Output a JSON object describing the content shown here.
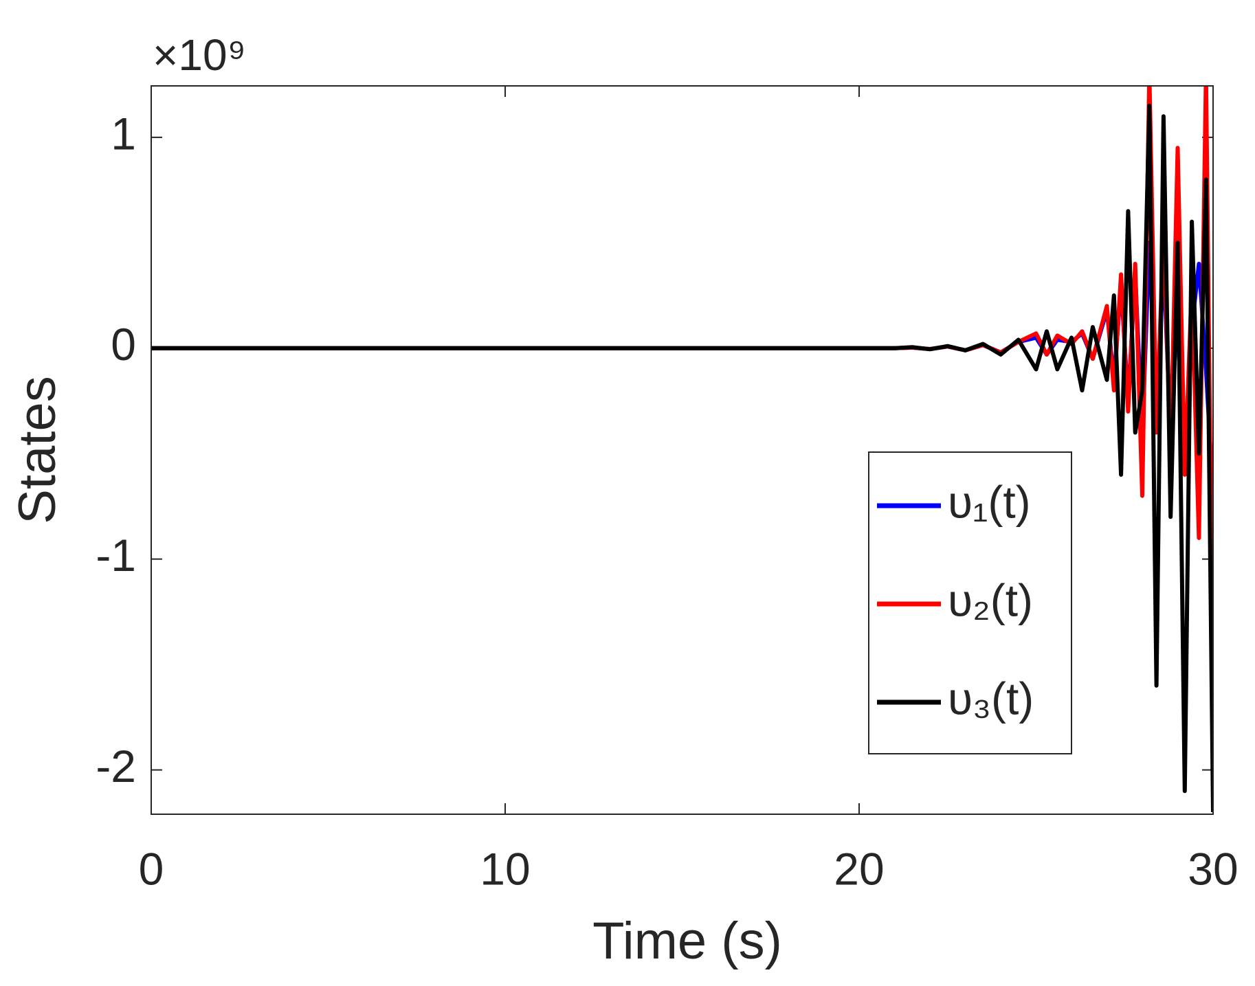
{
  "chart_data": {
    "type": "line",
    "ylabel": "States",
    "xlabel": "Time (s)",
    "y_multiplier": "×10⁹",
    "x": [
      0,
      21,
      21.5,
      22,
      22.5,
      23,
      23.5,
      24,
      24.5,
      25,
      25.3,
      25.6,
      26,
      26.3,
      26.6,
      27,
      27.2,
      27.4,
      27.6,
      27.8,
      28,
      28.2,
      28.4,
      28.6,
      28.8,
      29,
      29.2,
      29.4,
      29.6,
      29.8,
      30
    ],
    "series": [
      {
        "name": "υ₁(t)",
        "color": "#0000ff",
        "values": [
          0,
          0,
          0.003,
          -0.004,
          0.008,
          -0.01,
          0.015,
          -0.02,
          0.03,
          0.05,
          -0.03,
          0.04,
          0.03,
          0.07,
          -0.05,
          0.18,
          -0.15,
          0.3,
          -0.25,
          0.35,
          -0.4,
          0.5,
          -0.3,
          0.4,
          -0.4,
          0.2,
          -0.5,
          0.1,
          0.4,
          -0.1,
          -0.7
        ]
      },
      {
        "name": "υ₂(t)",
        "color": "#ff0000",
        "values": [
          0,
          0,
          0.003,
          -0.004,
          0.008,
          -0.01,
          0.015,
          -0.02,
          0.03,
          0.07,
          -0.03,
          0.06,
          0.02,
          0.08,
          -0.05,
          0.2,
          -0.2,
          0.35,
          -0.3,
          0.4,
          -0.7,
          1.3,
          -0.4,
          0.55,
          -0.5,
          0.95,
          -0.6,
          0.3,
          -0.9,
          1.3,
          -1.7
        ]
      },
      {
        "name": "υ₃(t)",
        "color": "#000000",
        "values": [
          0,
          0,
          0.005,
          -0.005,
          0.01,
          -0.01,
          0.02,
          -0.03,
          0.04,
          -0.1,
          0.08,
          -0.1,
          0.05,
          -0.2,
          0.1,
          -0.15,
          0.25,
          -0.6,
          0.65,
          -0.4,
          -0.2,
          1.15,
          -1.6,
          1.1,
          -0.8,
          0.5,
          -2.1,
          0.6,
          -0.5,
          0.8,
          -2.2
        ]
      }
    ],
    "xlim": [
      0,
      30
    ],
    "xticks": [
      0,
      10,
      20,
      30
    ],
    "ylim": [
      -2.21,
      1.244
    ],
    "yticks": [
      -2,
      -1,
      0,
      1
    ],
    "legend": "lower right"
  }
}
